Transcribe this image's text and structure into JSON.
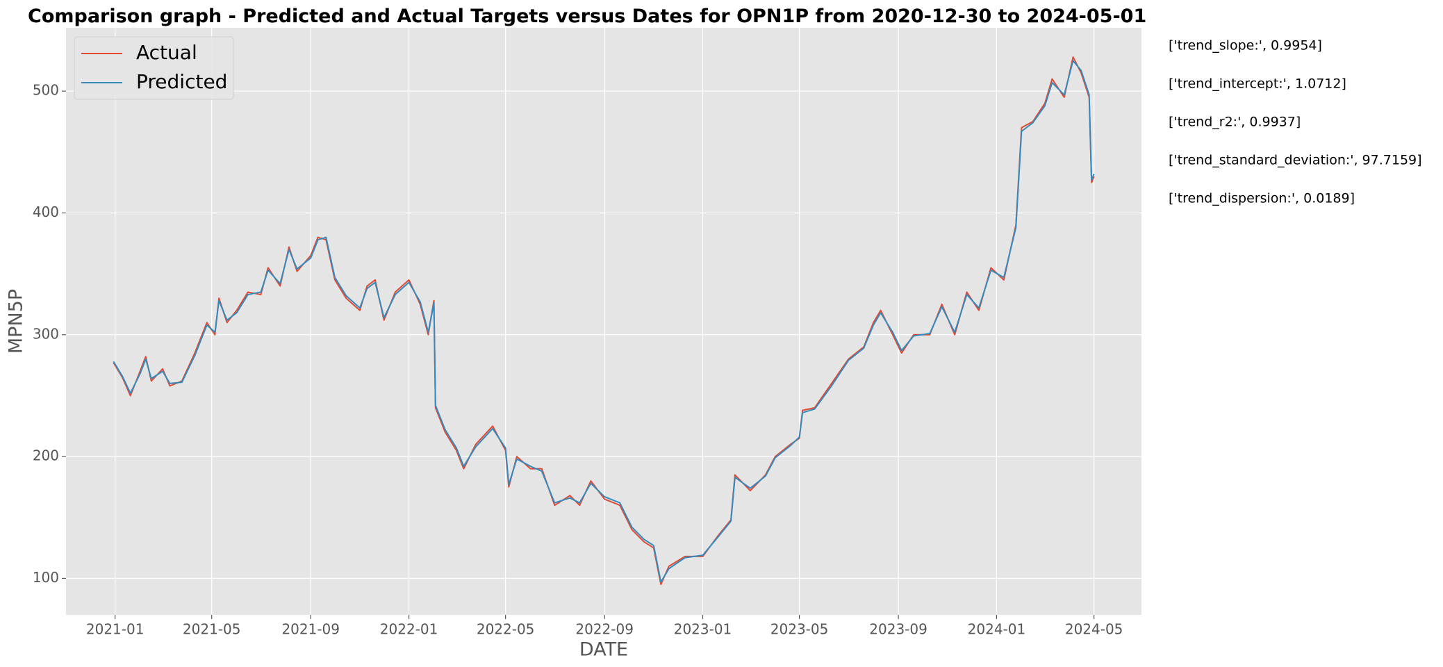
{
  "chart_data": {
    "type": "line",
    "title": "Comparison graph - Predicted and Actual Targets versus Dates for OPN1P from 2020-12-30 to 2024-05-01",
    "x_label": "DATE",
    "y_label": "MPN5P",
    "x": [
      "2020-12-30",
      "2021-01-10",
      "2021-01-20",
      "2021-02-01",
      "2021-02-08",
      "2021-02-15",
      "2021-03-01",
      "2021-03-10",
      "2021-03-25",
      "2021-04-10",
      "2021-04-25",
      "2021-05-05",
      "2021-05-10",
      "2021-05-20",
      "2021-06-01",
      "2021-06-15",
      "2021-07-01",
      "2021-07-10",
      "2021-07-25",
      "2021-08-05",
      "2021-08-15",
      "2021-09-01",
      "2021-09-10",
      "2021-09-20",
      "2021-10-01",
      "2021-10-15",
      "2021-11-01",
      "2021-11-10",
      "2021-11-20",
      "2021-12-01",
      "2021-12-15",
      "2022-01-01",
      "2022-01-15",
      "2022-01-25",
      "2022-02-01",
      "2022-02-03",
      "2022-02-15",
      "2022-03-01",
      "2022-03-10",
      "2022-03-25",
      "2022-04-15",
      "2022-05-01",
      "2022-05-05",
      "2022-05-15",
      "2022-06-01",
      "2022-06-15",
      "2022-07-01",
      "2022-07-20",
      "2022-08-01",
      "2022-08-15",
      "2022-09-01",
      "2022-09-20",
      "2022-10-05",
      "2022-10-20",
      "2022-11-01",
      "2022-11-10",
      "2022-11-20",
      "2022-12-10",
      "2023-01-01",
      "2023-01-20",
      "2023-02-05",
      "2023-02-10",
      "2023-03-01",
      "2023-03-20",
      "2023-04-01",
      "2023-04-20",
      "2023-05-01",
      "2023-05-05",
      "2023-05-20",
      "2023-06-10",
      "2023-07-01",
      "2023-07-20",
      "2023-08-01",
      "2023-08-10",
      "2023-08-25",
      "2023-09-05",
      "2023-09-20",
      "2023-10-10",
      "2023-10-25",
      "2023-11-10",
      "2023-11-25",
      "2023-12-10",
      "2023-12-25",
      "2024-01-10",
      "2024-01-25",
      "2024-02-01",
      "2024-02-15",
      "2024-03-01",
      "2024-03-10",
      "2024-03-25",
      "2024-04-05",
      "2024-04-15",
      "2024-04-25",
      "2024-04-28",
      "2024-05-01"
    ],
    "series": [
      {
        "name": "Actual",
        "color": "#E24A33",
        "values": [
          277,
          265,
          250,
          270,
          282,
          262,
          272,
          258,
          262,
          285,
          310,
          300,
          330,
          310,
          320,
          335,
          333,
          355,
          340,
          372,
          352,
          365,
          380,
          378,
          345,
          330,
          320,
          340,
          345,
          312,
          335,
          345,
          325,
          300,
          328,
          240,
          220,
          205,
          190,
          210,
          225,
          205,
          175,
          200,
          190,
          190,
          160,
          168,
          160,
          180,
          165,
          160,
          140,
          130,
          125,
          95,
          110,
          118,
          118,
          135,
          148,
          185,
          172,
          185,
          200,
          210,
          215,
          238,
          240,
          260,
          280,
          290,
          310,
          320,
          300,
          285,
          300,
          300,
          325,
          300,
          335,
          320,
          355,
          345,
          390,
          470,
          475,
          490,
          510,
          495,
          528,
          515,
          495,
          425,
          430
        ]
      },
      {
        "name": "Predicted",
        "color": "#348ABD",
        "values": [
          278,
          266,
          252,
          268,
          280,
          264,
          270,
          260,
          261,
          283,
          308,
          302,
          328,
          312,
          318,
          333,
          335,
          353,
          342,
          370,
          354,
          363,
          378,
          380,
          347,
          332,
          322,
          338,
          343,
          314,
          333,
          343,
          327,
          302,
          326,
          242,
          222,
          207,
          192,
          208,
          223,
          207,
          177,
          198,
          192,
          188,
          162,
          166,
          162,
          178,
          167,
          162,
          142,
          132,
          127,
          97,
          108,
          117,
          119,
          134,
          147,
          183,
          174,
          184,
          199,
          209,
          216,
          236,
          239,
          258,
          279,
          289,
          308,
          318,
          302,
          287,
          299,
          301,
          323,
          302,
          333,
          322,
          353,
          347,
          388,
          467,
          474,
          488,
          507,
          497,
          525,
          517,
          497,
          427,
          432
        ]
      }
    ],
    "xlim": [
      "2020-11-01",
      "2024-06-29"
    ],
    "xticks": [
      "2021-01",
      "2021-05",
      "2021-09",
      "2022-01",
      "2022-05",
      "2022-09",
      "2023-01",
      "2023-05",
      "2023-09",
      "2024-01",
      "2024-05"
    ],
    "ylim": [
      70,
      552
    ],
    "yticks": [
      100,
      200,
      300,
      400,
      500
    ],
    "grid": true,
    "legend": "upper left",
    "annotations": [
      "['trend_slope:', 0.9954]",
      "['trend_intercept:', 1.0712]",
      "['trend_r2:', 0.9937]",
      "['trend_standard_deviation:', 97.7159]",
      "['trend_dispersion:', 0.0189]"
    ]
  }
}
